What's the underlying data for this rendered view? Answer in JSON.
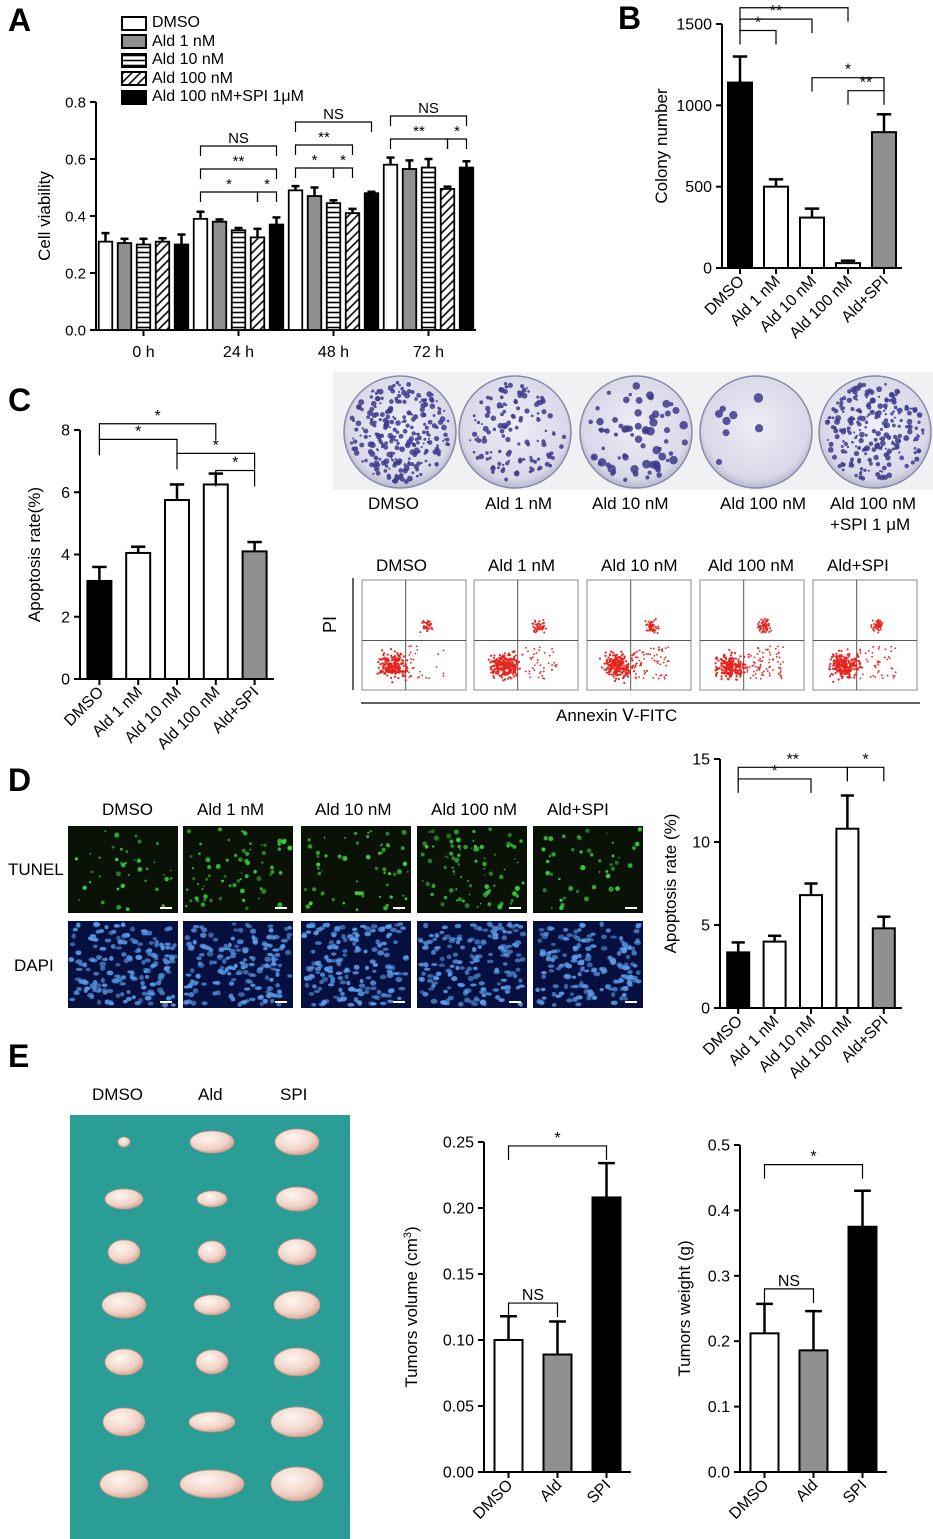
{
  "panels": {
    "A": "A",
    "B": "B",
    "C": "C",
    "D": "D",
    "E": "E"
  },
  "chart_data": [
    {
      "id": "A",
      "type": "bar",
      "ylabel": "Cell viability",
      "ylim": [
        0,
        0.8
      ],
      "yticks": [
        "0.0",
        "0.2",
        "0.4",
        "0.6",
        "0.8"
      ],
      "categories": [
        "0 h",
        "24 h",
        "48 h",
        "72 h"
      ],
      "legend_placement": "top",
      "series": [
        {
          "name": "DMSO",
          "style": "white",
          "values": [
            0.31,
            0.39,
            0.49,
            0.58
          ],
          "errors": [
            0.03,
            0.025,
            0.015,
            0.025
          ]
        },
        {
          "name": "Ald 1 nM",
          "style": "gray",
          "values": [
            0.305,
            0.38,
            0.47,
            0.565
          ],
          "errors": [
            0.015,
            0.008,
            0.03,
            0.03
          ]
        },
        {
          "name": "Ald 10 nM",
          "style": "hlines",
          "values": [
            0.3,
            0.35,
            0.445,
            0.57
          ],
          "errors": [
            0.02,
            0.008,
            0.01,
            0.03
          ]
        },
        {
          "name": "Ald 100 nM",
          "style": "diag",
          "values": [
            0.31,
            0.325,
            0.41,
            0.495
          ],
          "errors": [
            0.012,
            0.03,
            0.015,
            0.008
          ]
        },
        {
          "name": "Ald 100 nM+SPI 1μM",
          "style": "black",
          "values": [
            0.3,
            0.37,
            0.48,
            0.57
          ],
          "errors": [
            0.035,
            0.025,
            0.005,
            0.022
          ]
        }
      ],
      "annotations": [
        {
          "group": 1,
          "from": 0,
          "to": 3,
          "level": 0,
          "text": "*"
        },
        {
          "group": 1,
          "from": 3,
          "to": 4,
          "level": 0,
          "text": "*"
        },
        {
          "group": 1,
          "from": 0,
          "to": 4,
          "level": 1,
          "text": "**"
        },
        {
          "group": 1,
          "from": 0,
          "to": 4,
          "level": 2,
          "text": "NS"
        },
        {
          "group": 2,
          "from": 0,
          "to": 2,
          "level": 0,
          "text": "*"
        },
        {
          "group": 2,
          "from": 2,
          "to": 3,
          "level": 0,
          "text": "*"
        },
        {
          "group": 2,
          "from": 0,
          "to": 3,
          "level": 1,
          "text": "**"
        },
        {
          "group": 2,
          "from": 0,
          "to": 4,
          "level": 2,
          "text": "NS"
        },
        {
          "group": 3,
          "from": 0,
          "to": 3,
          "level": 0,
          "text": "**"
        },
        {
          "group": 3,
          "from": 3,
          "to": 4,
          "level": 0,
          "text": "*"
        },
        {
          "group": 3,
          "from": 0,
          "to": 4,
          "level": 1,
          "text": "NS"
        }
      ]
    },
    {
      "id": "B",
      "type": "bar",
      "ylabel": "Colony number",
      "ylim": [
        0,
        1500
      ],
      "yticks": [
        "0",
        "500",
        "1000",
        "1500"
      ],
      "categories": [
        "DMSO",
        "Ald 1 nM",
        "Ald 10 nM",
        "Ald 100 nM",
        "Ald+SPI"
      ],
      "styles": [
        "black",
        "white",
        "white",
        "white",
        "gray"
      ],
      "values": [
        1140,
        500,
        310,
        30,
        835
      ],
      "errors": [
        160,
        45,
        55,
        15,
        110
      ],
      "annotations": [
        {
          "from": 0,
          "to": 1,
          "y": 1460,
          "text": "*"
        },
        {
          "from": 0,
          "to": 2,
          "y": 1530,
          "text": "**"
        },
        {
          "from": 0,
          "to": 3,
          "y": 1600,
          "text": "**"
        },
        {
          "from": 3,
          "to": 4,
          "y": 1090,
          "text": "**"
        },
        {
          "from": 2,
          "to": 4,
          "y": 1170,
          "text": "*"
        }
      ]
    },
    {
      "id": "C",
      "type": "bar",
      "ylabel": "Apoptosis rate(%)",
      "ylim": [
        0,
        8
      ],
      "yticks": [
        "0",
        "2",
        "4",
        "6",
        "8"
      ],
      "categories": [
        "DMSO",
        "Ald 1 nM",
        "Ald 10 nM",
        "Ald 100 nM",
        "Ald+SPI"
      ],
      "styles": [
        "black",
        "white",
        "white",
        "white",
        "gray"
      ],
      "values": [
        3.15,
        4.05,
        5.75,
        6.25,
        4.1
      ],
      "errors": [
        0.45,
        0.2,
        0.5,
        0.35,
        0.3
      ],
      "annotations": [
        {
          "from": 0,
          "to": 2,
          "y": 7.7,
          "text": "*"
        },
        {
          "from": 0,
          "to": 3,
          "y": 8.2,
          "text": "*"
        },
        {
          "from": 2,
          "to": 4,
          "y": 7.25,
          "text": "*"
        },
        {
          "from": 3,
          "to": 4,
          "y": 6.7,
          "text": "*"
        }
      ]
    },
    {
      "id": "D",
      "type": "bar",
      "ylabel": "Apoptosis rate (%)",
      "ylim": [
        0,
        15
      ],
      "yticks": [
        "0",
        "5",
        "10",
        "15"
      ],
      "categories": [
        "DMSO",
        "Ald 1 nM",
        "Ald 10 nM",
        "Ald 100 nM",
        "Ald+SPI"
      ],
      "styles": [
        "black",
        "white",
        "white",
        "white",
        "gray"
      ],
      "values": [
        3.35,
        4.0,
        6.8,
        10.8,
        4.8
      ],
      "errors": [
        0.6,
        0.35,
        0.7,
        2.0,
        0.7
      ],
      "annotations": [
        {
          "from": 0,
          "to": 2,
          "y": 13.8,
          "text": "*"
        },
        {
          "from": 0,
          "to": 3,
          "y": 14.5,
          "text": "**"
        },
        {
          "from": 3,
          "to": 4,
          "y": 14.5,
          "text": "*"
        }
      ]
    },
    {
      "id": "E1",
      "type": "bar",
      "ylabel": "Tumors volume (cm",
      "ylabel_sup": "3",
      "ylabel_tail": ")",
      "ylim": [
        0,
        0.25
      ],
      "yticks": [
        "0.00",
        "0.05",
        "0.10",
        "0.15",
        "0.20",
        "0.25"
      ],
      "categories": [
        "DMSO",
        "Ald",
        "SPI"
      ],
      "styles": [
        "white",
        "gray",
        "black"
      ],
      "values": [
        0.1,
        0.089,
        0.208
      ],
      "errors": [
        0.018,
        0.025,
        0.026
      ],
      "annotations": [
        {
          "from": 0,
          "to": 1,
          "y": 0.128,
          "text": "NS"
        },
        {
          "from": 0,
          "to": 2,
          "y": 0.247,
          "text": "*"
        }
      ]
    },
    {
      "id": "E2",
      "type": "bar",
      "ylabel": "Tumors weight (g)",
      "ylim": [
        0,
        0.5
      ],
      "yticks": [
        "0.0",
        "0.1",
        "0.2",
        "0.3",
        "0.4",
        "0.5"
      ],
      "categories": [
        "DMSO",
        "Ald",
        "SPI"
      ],
      "styles": [
        "white",
        "gray",
        "black"
      ],
      "values": [
        0.212,
        0.186,
        0.375
      ],
      "errors": [
        0.045,
        0.06,
        0.055
      ],
      "annotations": [
        {
          "from": 0,
          "to": 1,
          "y": 0.28,
          "text": "NS"
        },
        {
          "from": 0,
          "to": 2,
          "y": 0.47,
          "text": "*"
        }
      ]
    }
  ],
  "colony_labels": [
    "DMSO",
    "Ald 1 nM",
    "Ald 10 nM",
    "Ald 100 nM",
    "Ald 100 nM",
    "+SPI 1 μM"
  ],
  "flow": {
    "titles": [
      "DMSO",
      "Ald 1 nM",
      "Ald 10 nM",
      "Ald 100 nM",
      "Ald+SPI"
    ],
    "ylabel": "PI",
    "xlabel": "Annexin Ⅴ-FITC"
  },
  "tunel": {
    "titles": [
      "DMSO",
      "Ald 1 nM",
      "Ald 10 nM",
      "Ald 100 nM",
      "Ald+SPI"
    ],
    "row_labels": [
      "TUNEL",
      "DAPI"
    ]
  },
  "tumor": {
    "titles": [
      "DMSO",
      "Ald",
      "SPI"
    ]
  }
}
